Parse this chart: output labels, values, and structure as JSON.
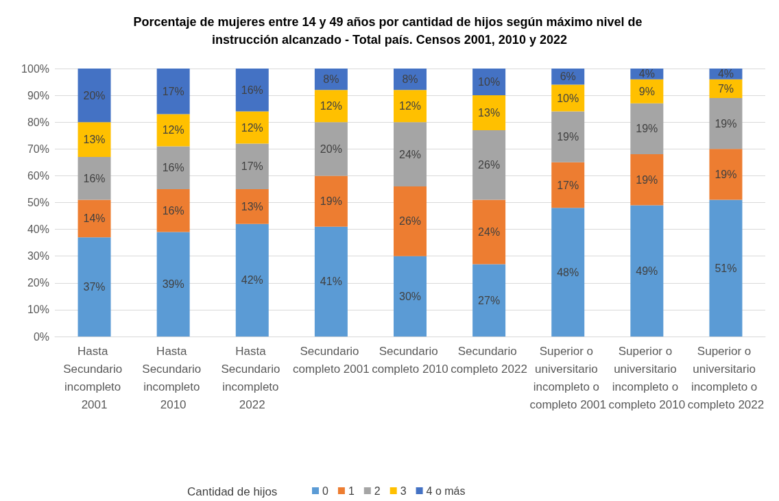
{
  "chart_data": {
    "type": "bar",
    "stacked": true,
    "title": "Porcentaje de mujeres entre 14 y 49 años por cantidad de hijos según máximo nivel de instrucción alcanzado - Total país. Censos 2001, 2010 y 2022",
    "categories": [
      "Hasta Secundario incompleto 2001",
      "Hasta Secundario incompleto 2010",
      "Hasta Secundario incompleto 2022",
      "Secundario completo 2001",
      "Secundario completo 2010",
      "Secundario completo 2022",
      "Superior o universitario incompleto o completo 2001",
      "Superior o universitario incompleto o completo 2010",
      "Superior o universitario incompleto o completo 2022"
    ],
    "series": [
      {
        "name": "0",
        "color": "#5b9bd5",
        "values": [
          37,
          39,
          42,
          41,
          30,
          27,
          48,
          49,
          51
        ],
        "value_labels": [
          "37%",
          "39%",
          "42%",
          "41%",
          "30%",
          "27%",
          "48%",
          "49%",
          "51%"
        ]
      },
      {
        "name": "1",
        "color": "#ed7d31",
        "values": [
          14,
          16,
          13,
          19,
          26,
          24,
          17,
          19,
          19
        ],
        "value_labels": [
          "14%",
          "16%",
          "13%",
          "19%",
          "26%",
          "24%",
          "17%",
          "19%",
          "19%"
        ]
      },
      {
        "name": "2",
        "color": "#a5a5a5",
        "values": [
          16,
          16,
          17,
          20,
          24,
          26,
          19,
          19,
          19
        ],
        "value_labels": [
          "16%",
          "16%",
          "17%",
          "20%",
          "24%",
          "26%",
          "19%",
          "19%",
          "19%"
        ]
      },
      {
        "name": "3",
        "color": "#ffc000",
        "values": [
          13,
          12,
          12,
          12,
          12,
          13,
          10,
          9,
          7
        ],
        "value_labels": [
          "13%",
          "12%",
          "12%",
          "12%",
          "12%",
          "13%",
          "10%",
          "9%",
          "7%"
        ]
      },
      {
        "name": "4 o más",
        "color": "#4472c4",
        "values": [
          20,
          17,
          16,
          8,
          8,
          10,
          6,
          4,
          4
        ],
        "value_labels": [
          "20%",
          "17%",
          "16%",
          "8%",
          "8%",
          "10%",
          "6%",
          "4%",
          "4%"
        ]
      }
    ],
    "ylim": [
      0,
      100
    ],
    "yticks": [
      {
        "value": 0,
        "label": "0%"
      },
      {
        "value": 10,
        "label": "10%"
      },
      {
        "value": 20,
        "label": "20%"
      },
      {
        "value": 30,
        "label": "30%"
      },
      {
        "value": 40,
        "label": "40%"
      },
      {
        "value": 50,
        "label": "50%"
      },
      {
        "value": 60,
        "label": "60%"
      },
      {
        "value": 70,
        "label": "70%"
      },
      {
        "value": 80,
        "label": "80%"
      },
      {
        "value": 90,
        "label": "90%"
      },
      {
        "value": 100,
        "label": "100%"
      }
    ],
    "grid": "y",
    "legend": "bottom",
    "legend_title": "Cantidad de hijos"
  }
}
